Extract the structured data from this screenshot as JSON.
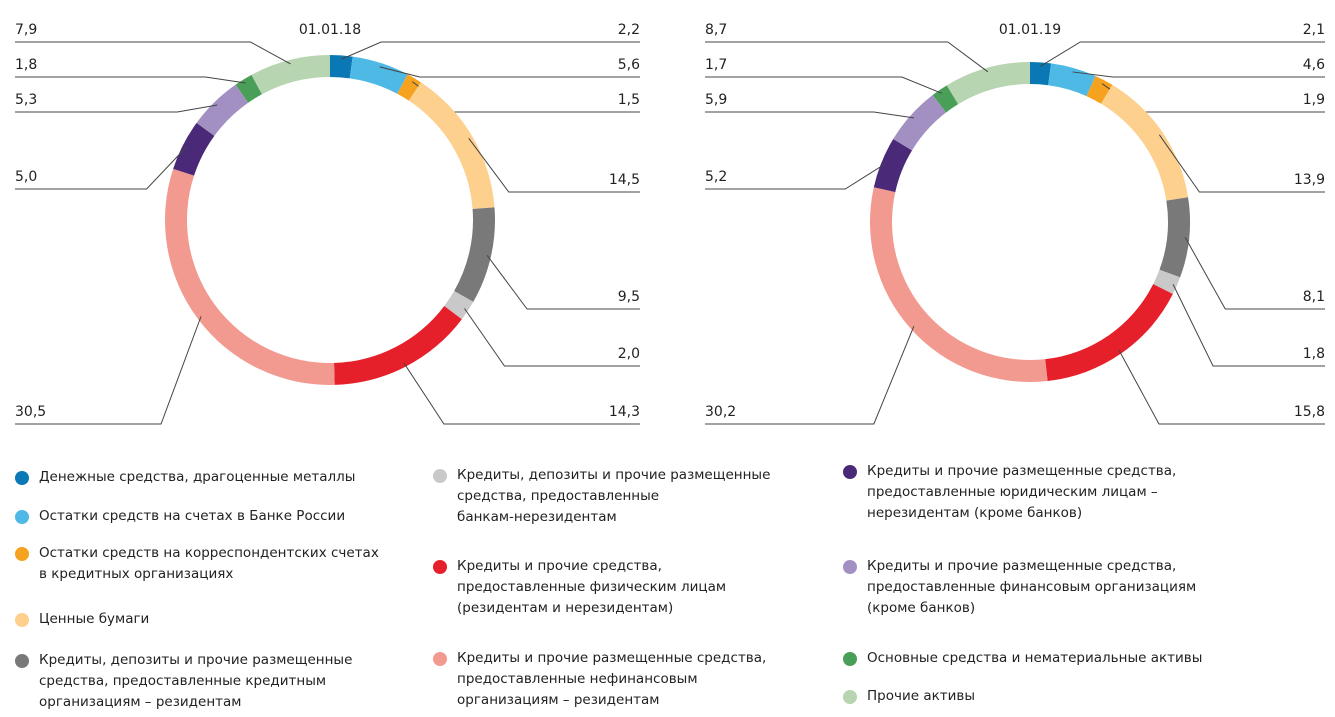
{
  "chart_data": [
    {
      "type": "donut",
      "title": "01.01.18",
      "values": [
        2.2,
        5.6,
        1.5,
        14.5,
        9.5,
        2.0,
        14.3,
        30.5,
        5.0,
        5.3,
        1.8,
        7.9
      ],
      "value_labels": [
        "2,2",
        "5,6",
        "1,5",
        "14,5",
        "9,5",
        "2,0",
        "14,3",
        "30,5",
        "5,0",
        "5,3",
        "1,8",
        "7,9"
      ]
    },
    {
      "type": "donut",
      "title": "01.01.19",
      "values": [
        2.1,
        4.6,
        1.9,
        13.9,
        8.1,
        1.8,
        15.8,
        30.2,
        5.2,
        5.9,
        1.7,
        8.7
      ],
      "value_labels": [
        "2,1",
        "4,6",
        "1,9",
        "13,9",
        "8,1",
        "1,8",
        "15,8",
        "30,2",
        "5,2",
        "5,9",
        "1,7",
        "8,7"
      ]
    }
  ],
  "legend": [
    {
      "label": "Денежные средства, драгоценные металлы",
      "color": "#0a78b4"
    },
    {
      "label": "Остатки средств на счетах в Банке России",
      "color": "#4fb9e6"
    },
    {
      "label": "Остатки средств на корреспондентских счетах\nв кредитных организациях",
      "color": "#f5a21f"
    },
    {
      "label": "Ценные бумаги",
      "color": "#fdd08d"
    },
    {
      "label": "Кредиты, депозиты и прочие размещенные\nсредства, предоставленные кредитным\nорганизациям – резидентам",
      "color": "#797979"
    },
    {
      "label": "Кредиты, депозиты и прочие размещенные\nсредства, предоставленные\nбанкам-нерезидентам",
      "color": "#c9c9c9"
    },
    {
      "label": "Кредиты и прочие средства,\nпредоставленные физическим лицам\n(резидентам и нерезидентам)",
      "color": "#e6202b"
    },
    {
      "label": "Кредиты и прочие размещенные средства,\nпредоставленные нефинансовым\nорганизациям – резидентам",
      "color": "#f29a8f"
    },
    {
      "label": "Кредиты и прочие размещенные средства,\nпредоставленные юридическим лицам –\nнерезидентам (кроме банков)",
      "color": "#4a2a78"
    },
    {
      "label": "Кредиты и прочие размещенные средства,\nпредоставленные финансовым организациям\n(кроме банков)",
      "color": "#a390c2"
    },
    {
      "label": "Основные средства  и нематериальные активы",
      "color": "#4a9f58"
    },
    {
      "label": "Прочие активы",
      "color": "#b7d5b1"
    }
  ]
}
